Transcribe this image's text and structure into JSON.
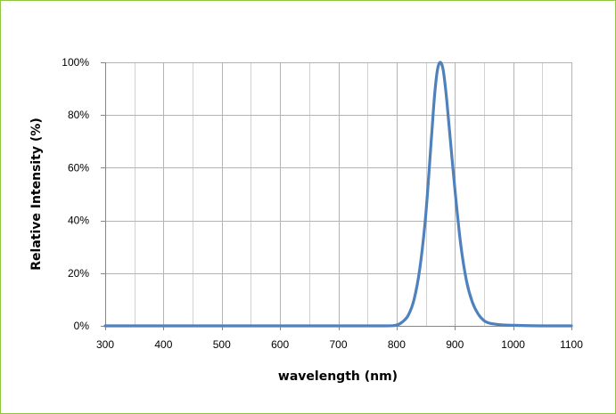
{
  "chart_data": {
    "type": "line",
    "title": "",
    "xlabel": "wavelength (nm)",
    "ylabel": "Relative Intensity (%)",
    "xlim": [
      300,
      1100
    ],
    "ylim": [
      0,
      100
    ],
    "x_ticks": [
      300,
      400,
      500,
      600,
      700,
      800,
      900,
      1000,
      1100
    ],
    "x_tick_labels": [
      "300",
      "400",
      "500",
      "600",
      "700",
      "800",
      "900",
      "1000",
      "1100"
    ],
    "y_ticks": [
      0,
      20,
      40,
      60,
      80,
      100
    ],
    "y_tick_labels": [
      "0%",
      "20%",
      "40%",
      "60%",
      "80%",
      "100%"
    ],
    "grid": true,
    "x_minor_grid_step": 50,
    "legend": "none",
    "series": [
      {
        "color": "#4f81bd",
        "x": [
          300,
          400,
          500,
          600,
          700,
          780,
          800,
          810,
          820,
          830,
          840,
          850,
          860,
          865,
          870,
          875,
          880,
          885,
          890,
          900,
          910,
          920,
          930,
          940,
          950,
          960,
          980,
          1000,
          1050,
          1100
        ],
        "y": [
          0,
          0,
          0,
          0,
          0,
          0,
          0.3,
          1.5,
          4,
          10,
          22,
          42,
          72,
          87,
          97,
          100,
          97,
          88,
          76,
          52,
          31,
          17,
          9,
          4.5,
          2,
          1,
          0.4,
          0.2,
          0,
          0
        ]
      }
    ]
  }
}
